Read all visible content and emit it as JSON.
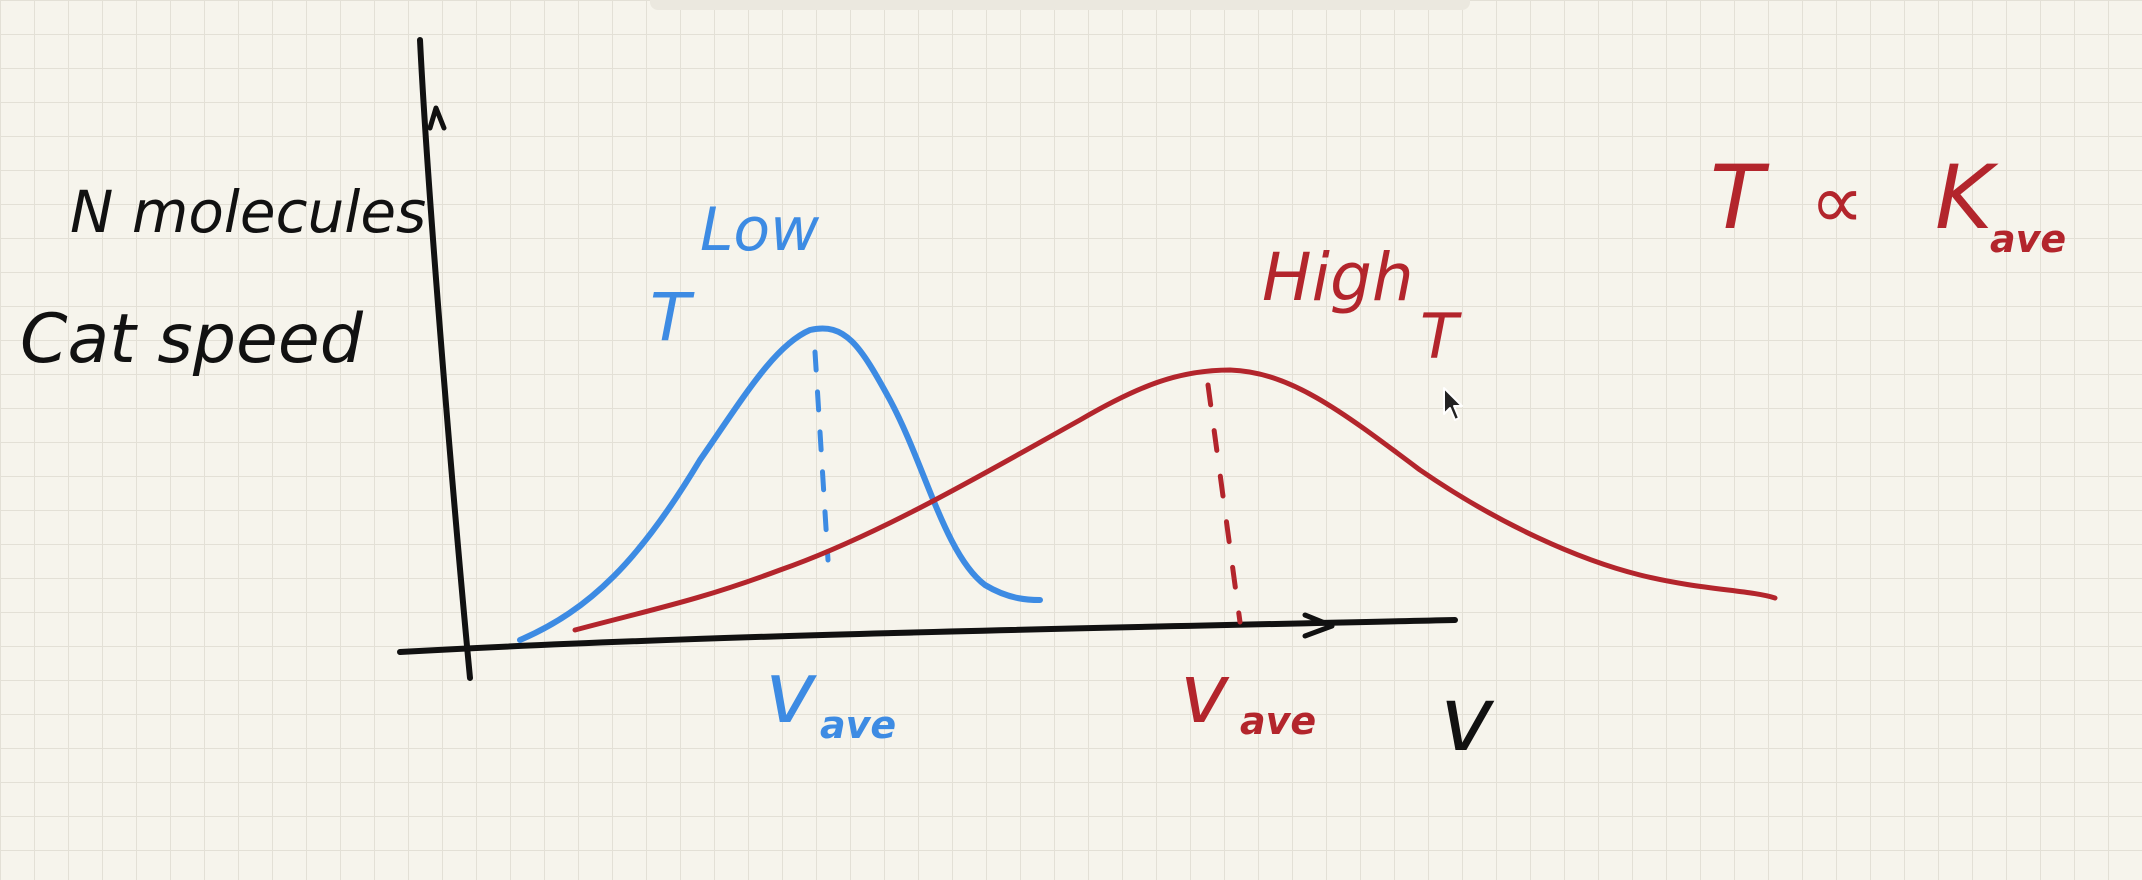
{
  "colors": {
    "ink": "#111111",
    "blue": "#3d8be3",
    "red": "#b3252c",
    "paper": "#f6f4ec",
    "grid": "#e3e0d6"
  },
  "labels": {
    "y_axis_line1": "N molecules",
    "y_axis_line2": "Cat speed",
    "x_axis": "v",
    "low": "Low",
    "low_t": "T",
    "high": "High",
    "high_t": "T",
    "v_ave": "v",
    "v_ave_sub": "ave",
    "v_ave2": "v",
    "v_ave2_sub": "ave",
    "relation_t": "T",
    "relation_sym": "∝",
    "relation_k": "K",
    "relation_sub": "ave"
  },
  "icons": {
    "cursor": "mouse-cursor-icon"
  }
}
